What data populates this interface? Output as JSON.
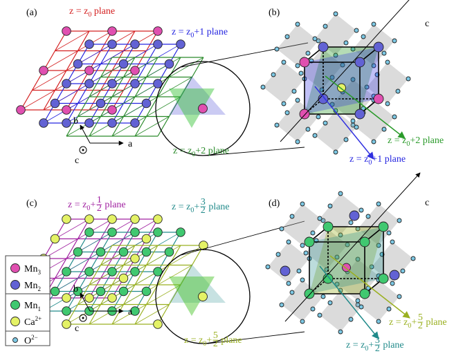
{
  "panels": [
    "(a)",
    "(b)",
    "(c)",
    "(d)"
  ],
  "planes": {
    "a_z0": {
      "base": "z = z",
      "sub": "0",
      "rest": " plane"
    },
    "a_z1": {
      "base": "z = z",
      "sub": "0",
      "rest": "+1 plane"
    },
    "a_z2": {
      "base": "z = z",
      "sub": "0",
      "rest": "+2 plane"
    },
    "b_z2": {
      "base": "z = z",
      "sub": "0",
      "rest": "+2 plane"
    },
    "b_z1": {
      "base": "z = z",
      "sub": "0",
      "rest": "+1 plane"
    },
    "c_half": {
      "base": "z = z",
      "sub": "0",
      "rest": "+",
      "num": "1",
      "den": "2",
      "tail": "plane"
    },
    "c_three": {
      "base": "z = z",
      "sub": "0",
      "rest": "+",
      "num": "3",
      "den": "2",
      "tail": "plane"
    },
    "c_five": {
      "base": "z = z",
      "sub": "0",
      "rest": "+",
      "num": "5",
      "den": "2",
      "tail": "plane"
    },
    "d_five": {
      "base": "z = z",
      "sub": "0",
      "rest": "+",
      "num": "5",
      "den": "2",
      "tail": "plane"
    },
    "d_three": {
      "base": "z = z",
      "sub": "0",
      "rest": "+",
      "num": "3",
      "den": "2",
      "tail": "plane"
    }
  },
  "axes": {
    "a": {
      "b": "b",
      "a": "a",
      "c": "c"
    },
    "b": {
      "c": "c"
    },
    "c": {
      "b": "b",
      "a": "a",
      "c": "c"
    },
    "d": {
      "c": "c"
    }
  },
  "legend": [
    {
      "name": "Mn",
      "sub": "3"
    },
    {
      "name": "Mn",
      "sub": "2"
    },
    {
      "name": "Mn",
      "sub": "1"
    },
    {
      "name": "Ca",
      "sup": "2+"
    },
    {
      "name": "O",
      "sup": "2−"
    }
  ]
}
